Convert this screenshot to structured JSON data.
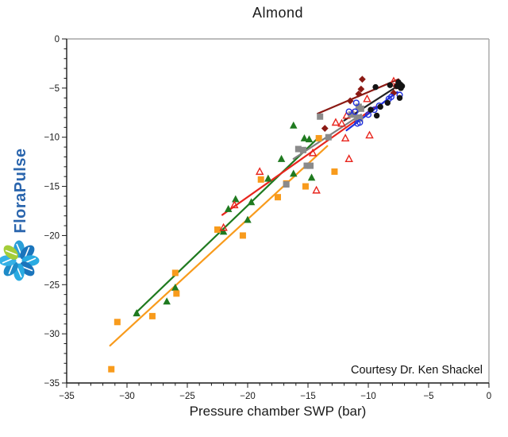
{
  "title": "Almond",
  "xlabel": "Pressure chamber SWP (bar)",
  "courtesy": "Courtesy Dr. Ken Shackel",
  "logo": {
    "text": "FloraPulse",
    "text_color": "#2a65ad",
    "petals": [
      "#2b9fd8",
      "#1b75bc",
      "#29abe2",
      "#1b75bc",
      "#29abe2",
      "#1e8bc8",
      "#35b1e6",
      "#a4cd39"
    ]
  },
  "chart_data": {
    "type": "scatter",
    "title": "Almond",
    "xlabel": "Pressure chamber SWP (bar)",
    "ylabel": "",
    "xlim": [
      -35,
      0
    ],
    "ylim": [
      -35,
      0
    ],
    "x_ticks": [
      -35,
      -30,
      -25,
      -20,
      -15,
      -10,
      -5,
      0
    ],
    "y_ticks": [
      0,
      -5,
      -10,
      -15,
      -20,
      -25,
      -30,
      -35
    ],
    "minor_tick_step": 1,
    "grid": false,
    "legend": "none",
    "series": [
      {
        "name": "green-triangles",
        "marker": "triangle",
        "fill": "filled",
        "color": "#1f7a1f",
        "points": [
          [
            -29.2,
            -27.9
          ],
          [
            -26.7,
            -26.7
          ],
          [
            -26.0,
            -25.3
          ],
          [
            -22.0,
            -19.6
          ],
          [
            -21.6,
            -17.3
          ],
          [
            -21.0,
            -16.3
          ],
          [
            -20.0,
            -18.4
          ],
          [
            -19.7,
            -16.6
          ],
          [
            -18.3,
            -14.2
          ],
          [
            -17.2,
            -12.2
          ],
          [
            -16.2,
            -13.7
          ],
          [
            -16.2,
            -8.8
          ],
          [
            -15.3,
            -10.1
          ],
          [
            -14.9,
            -10.2
          ],
          [
            -14.7,
            -14.1
          ]
        ]
      },
      {
        "name": "orange-squares",
        "marker": "square",
        "fill": "filled",
        "color": "#f89b1c",
        "points": [
          [
            -31.3,
            -33.6
          ],
          [
            -30.8,
            -28.8
          ],
          [
            -27.9,
            -28.2
          ],
          [
            -26.0,
            -23.8
          ],
          [
            -25.9,
            -25.9
          ],
          [
            -22.5,
            -19.4
          ],
          [
            -20.4,
            -20.0
          ],
          [
            -18.9,
            -14.3
          ],
          [
            -17.5,
            -16.1
          ],
          [
            -16.8,
            -14.7
          ],
          [
            -15.2,
            -15.0
          ],
          [
            -14.1,
            -10.1
          ],
          [
            -12.8,
            -13.5
          ]
        ]
      },
      {
        "name": "red-open-triangles",
        "marker": "triangle",
        "fill": "open",
        "color": "#e8251d",
        "points": [
          [
            -22.0,
            -19.2
          ],
          [
            -21.1,
            -16.9
          ],
          [
            -19.0,
            -13.5
          ],
          [
            -14.6,
            -11.6
          ],
          [
            -14.3,
            -15.4
          ],
          [
            -12.7,
            -8.5
          ],
          [
            -12.2,
            -8.6
          ],
          [
            -11.9,
            -10.1
          ],
          [
            -11.8,
            -7.8
          ],
          [
            -11.6,
            -12.2
          ],
          [
            -11.3,
            -7.6
          ],
          [
            -10.1,
            -6.1
          ],
          [
            -9.9,
            -9.8
          ],
          [
            -7.9,
            -4.3
          ]
        ]
      },
      {
        "name": "gray-squares",
        "marker": "square",
        "fill": "filled",
        "color": "#8b8b8b",
        "points": [
          [
            -16.8,
            -14.8
          ],
          [
            -15.8,
            -11.2
          ],
          [
            -15.4,
            -11.3
          ],
          [
            -15.1,
            -12.9
          ],
          [
            -14.8,
            -12.9
          ],
          [
            -14.0,
            -7.9
          ],
          [
            -13.3,
            -10.0
          ],
          [
            -11.4,
            -7.7
          ],
          [
            -10.9,
            -8.0
          ],
          [
            -10.8,
            -6.9
          ],
          [
            -10.7,
            -8.1
          ],
          [
            -10.6,
            -7.1
          ]
        ]
      },
      {
        "name": "maroon-diamonds",
        "marker": "diamond",
        "fill": "filled",
        "color": "#8b1a14",
        "points": [
          [
            -13.6,
            -9.1
          ],
          [
            -11.5,
            -6.3
          ],
          [
            -10.8,
            -5.6
          ],
          [
            -10.6,
            -5.1
          ],
          [
            -10.5,
            -4.1
          ],
          [
            -7.9,
            -5.5
          ],
          [
            -7.7,
            -4.8
          ]
        ]
      },
      {
        "name": "blue-open-circles",
        "marker": "circle",
        "fill": "open",
        "color": "#2030dd",
        "points": [
          [
            -11.6,
            -7.4
          ],
          [
            -11.1,
            -7.4
          ],
          [
            -11.0,
            -6.5
          ],
          [
            -10.9,
            -8.6
          ],
          [
            -10.7,
            -8.5
          ],
          [
            -10.0,
            -7.7
          ],
          [
            -9.5,
            -7.2
          ],
          [
            -9.1,
            -6.8
          ],
          [
            -8.3,
            -6.1
          ],
          [
            -8.1,
            -5.9
          ],
          [
            -7.4,
            -5.7
          ]
        ]
      },
      {
        "name": "black-circles",
        "marker": "circle",
        "fill": "filled",
        "color": "#141414",
        "points": [
          [
            -9.8,
            -7.2
          ],
          [
            -9.4,
            -4.9
          ],
          [
            -9.3,
            -7.8
          ],
          [
            -9.0,
            -6.9
          ],
          [
            -8.4,
            -6.5
          ],
          [
            -8.2,
            -4.7
          ],
          [
            -7.6,
            -4.8
          ],
          [
            -7.5,
            -4.4
          ],
          [
            -7.4,
            -4.6
          ],
          [
            -7.4,
            -6.0
          ],
          [
            -7.3,
            -5.0
          ],
          [
            -7.2,
            -4.8
          ]
        ]
      }
    ],
    "trend_lines": [
      {
        "name": "orange-line",
        "color": "#f89b1c",
        "from": [
          -31.4,
          -31.2
        ],
        "to": [
          -13.4,
          -10.9
        ]
      },
      {
        "name": "green-line",
        "color": "#1f7a1f",
        "from": [
          -29.3,
          -27.9
        ],
        "to": [
          -14.1,
          -10.0
        ]
      },
      {
        "name": "red-line",
        "color": "#e8251d",
        "from": [
          -22.1,
          -17.9
        ],
        "to": [
          -9.4,
          -6.9
        ]
      },
      {
        "name": "gray-line",
        "color": "#7f7f7f",
        "from": [
          -16.2,
          -12.2
        ],
        "to": [
          -10.6,
          -7.7
        ]
      },
      {
        "name": "maroon-line",
        "color": "#8b1a14",
        "from": [
          -14.2,
          -7.6
        ],
        "to": [
          -7.5,
          -4.1
        ]
      },
      {
        "name": "black-line",
        "color": "#222222",
        "from": [
          -12.0,
          -8.3
        ],
        "to": [
          -7.2,
          -4.5
        ]
      },
      {
        "name": "blue-line",
        "color": "#2030dd",
        "from": [
          -11.8,
          -9.3
        ],
        "to": [
          -7.6,
          -5.4
        ]
      }
    ]
  }
}
